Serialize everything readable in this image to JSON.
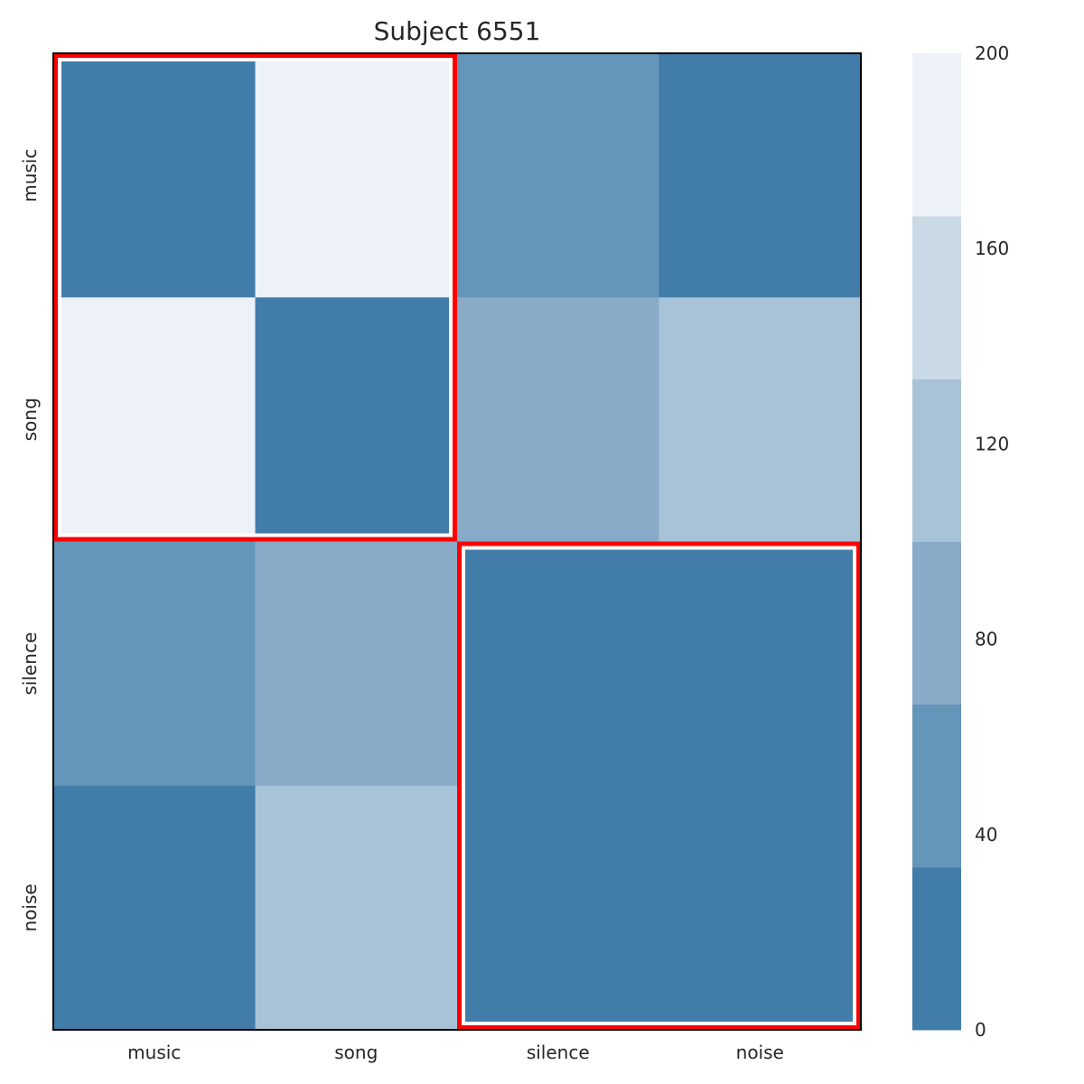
{
  "chart_data": {
    "type": "heatmap",
    "title": "Subject 6551",
    "xlabel": "",
    "ylabel": "",
    "x_categories": [
      "music",
      "song",
      "silence",
      "noise"
    ],
    "y_categories": [
      "music",
      "song",
      "silence",
      "noise"
    ],
    "values": [
      [
        10,
        190,
        60,
        10
      ],
      [
        190,
        10,
        90,
        115
      ],
      [
        60,
        90,
        10,
        10
      ],
      [
        10,
        115,
        10,
        10
      ]
    ],
    "colorbar": {
      "range": [
        0,
        200
      ],
      "ticks": [
        0,
        40,
        80,
        120,
        160,
        200
      ],
      "levels": [
        0,
        33.3,
        66.7,
        100,
        133.3,
        166.7,
        200
      ],
      "colors": [
        "#427ca8",
        "#6595b9",
        "#89abc7",
        "#a8c3d8",
        "#c9dae6",
        "#edf2f9"
      ]
    },
    "highlight_blocks": [
      {
        "rows": [
          "music",
          "song"
        ],
        "cols": [
          "music",
          "song"
        ]
      },
      {
        "rows": [
          "silence",
          "noise"
        ],
        "cols": [
          "silence",
          "noise"
        ]
      }
    ],
    "highlight_color": "#ff0000",
    "grid": false
  }
}
